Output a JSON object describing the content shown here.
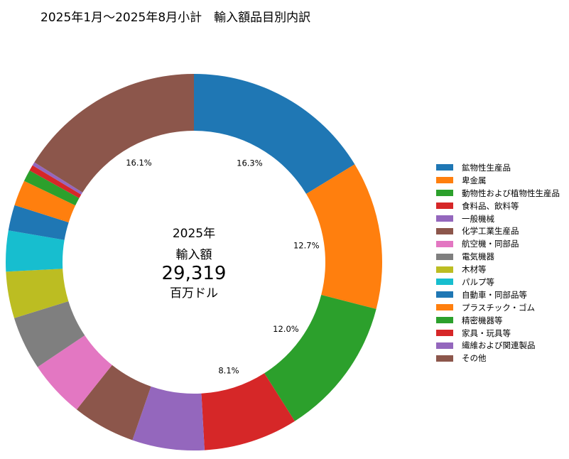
{
  "chart_data": {
    "type": "pie",
    "donut": true,
    "title": "2025年1月～2025年8月小計　輸入額品目別内訳",
    "center_text": {
      "year": "2025年",
      "label": "輸入額",
      "value": "29,319",
      "unit": "百万ドル"
    },
    "start_angle": "top",
    "direction": "clockwise",
    "legend_position": "right",
    "slices": [
      {
        "label": "鉱物性生産品",
        "value": 16.3,
        "show_label": true,
        "color": "#1f77b4"
      },
      {
        "label": "卑金属",
        "value": 12.7,
        "show_label": true,
        "color": "#ff7f0e"
      },
      {
        "label": "動物性および植物性生産品",
        "value": 12.0,
        "show_label": true,
        "color": "#2ca02c"
      },
      {
        "label": "食料品、飲料等",
        "value": 8.1,
        "show_label": true,
        "color": "#d62728"
      },
      {
        "label": "一般機械",
        "value": 6.2,
        "show_label": false,
        "color": "#9467bd"
      },
      {
        "label": "化学工業生産品",
        "value": 5.4,
        "show_label": false,
        "color": "#8c564b"
      },
      {
        "label": "航空機・同部品",
        "value": 4.9,
        "show_label": false,
        "color": "#e377c2"
      },
      {
        "label": "電気機器",
        "value": 4.6,
        "show_label": false,
        "color": "#7f7f7f"
      },
      {
        "label": "木材等",
        "value": 4.0,
        "show_label": false,
        "color": "#bcbd22"
      },
      {
        "label": "パルプ等",
        "value": 3.5,
        "show_label": false,
        "color": "#17becf"
      },
      {
        "label": "自動車・同部品等",
        "value": 2.2,
        "show_label": false,
        "color": "#1f77b4"
      },
      {
        "label": "プラスチック・ゴム",
        "value": 2.2,
        "show_label": false,
        "color": "#ff7f0e"
      },
      {
        "label": "精密機器等",
        "value": 1.0,
        "show_label": false,
        "color": "#2ca02c"
      },
      {
        "label": "家具・玩具等",
        "value": 0.5,
        "show_label": false,
        "color": "#d62728"
      },
      {
        "label": "繊維および関連製品",
        "value": 0.3,
        "show_label": false,
        "color": "#9467bd"
      },
      {
        "label": "その他",
        "value": 16.1,
        "show_label": true,
        "color": "#8c564b"
      }
    ]
  }
}
